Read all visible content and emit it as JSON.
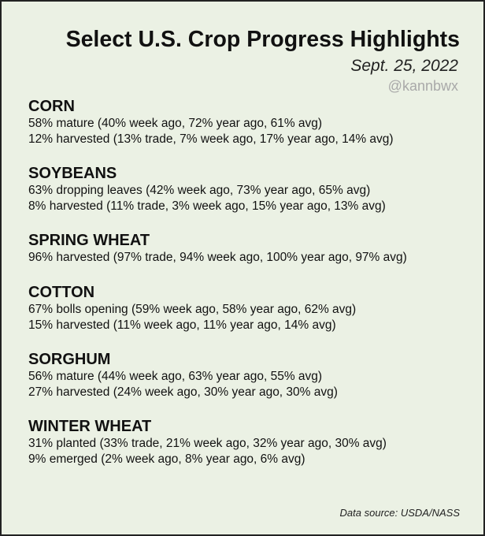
{
  "header": {
    "title": "Select U.S. Crop Progress Highlights",
    "date": "Sept. 25, 2022",
    "handle": "@kannbwx"
  },
  "crops": [
    {
      "name": "CORN",
      "lines": [
        "58% mature (40% week ago, 72% year ago, 61% avg)",
        "12% harvested (13% trade, 7% week ago, 17% year ago, 14% avg)"
      ]
    },
    {
      "name": "SOYBEANS",
      "lines": [
        "63% dropping leaves (42% week ago, 73% year ago, 65% avg)",
        "8% harvested (11% trade, 3% week ago, 15% year ago, 13% avg)"
      ]
    },
    {
      "name": "SPRING WHEAT",
      "lines": [
        "96% harvested (97% trade, 94% week ago, 100% year ago, 97% avg)"
      ]
    },
    {
      "name": "COTTON",
      "lines": [
        "67% bolls opening (59% week ago, 58% year ago, 62% avg)",
        "15% harvested (11% week ago, 11% year ago, 14% avg)"
      ]
    },
    {
      "name": "SORGHUM",
      "lines": [
        "56% mature (44% week ago, 63% year ago, 55% avg)",
        "27% harvested (24% week ago, 30% year ago, 30% avg)"
      ]
    },
    {
      "name": "WINTER WHEAT",
      "lines": [
        "31% planted (33% trade, 21% week ago, 32% year ago, 30% avg)",
        "9% emerged (2% week ago, 8% year ago, 6% avg)"
      ]
    }
  ],
  "footer": {
    "source": "Data source: USDA/NASS"
  }
}
